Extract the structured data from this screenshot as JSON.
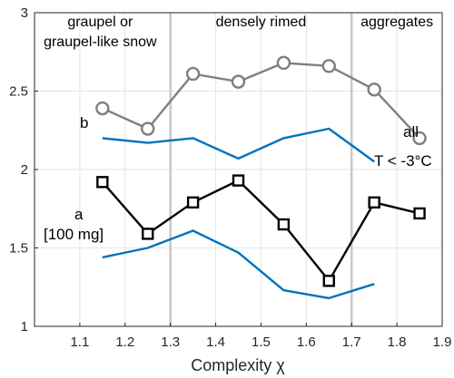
{
  "chart_data": {
    "type": "line",
    "xlabel": "Complexity χ",
    "ylabel": "",
    "xlim": [
      1.0,
      1.9
    ],
    "ylim": [
      1,
      3
    ],
    "xticks": [
      "1.1",
      "1.2",
      "1.3",
      "1.4",
      "1.5",
      "1.6",
      "1.7",
      "1.8",
      "1.9"
    ],
    "yticks": [
      "1",
      "1.5",
      "2",
      "2.5",
      "3"
    ],
    "grid": true,
    "dividers": [
      1.3,
      1.7
    ],
    "regions": [
      {
        "lines": [
          "graupel or",
          "graupel-like snow"
        ],
        "x_center": 1.145
      },
      {
        "lines": [
          "densely rimed"
        ],
        "x_center": 1.5
      },
      {
        "lines": [
          "aggregates"
        ],
        "x_center": 1.8
      }
    ],
    "series": [
      {
        "key": "b_all",
        "x": [
          1.15,
          1.25,
          1.35,
          1.45,
          1.55,
          1.65,
          1.75,
          1.85
        ],
        "values": [
          2.39,
          2.26,
          2.61,
          2.56,
          2.68,
          2.66,
          2.51,
          2.2
        ],
        "color": "#7f7f7f",
        "marker": "circle"
      },
      {
        "key": "b_cold",
        "x": [
          1.15,
          1.25,
          1.35,
          1.45,
          1.55,
          1.65,
          1.75
        ],
        "values": [
          2.2,
          2.17,
          2.2,
          2.07,
          2.2,
          2.26,
          2.05
        ],
        "color": "#0072bd",
        "marker": "none"
      },
      {
        "key": "a_all",
        "x": [
          1.15,
          1.25,
          1.35,
          1.45,
          1.55,
          1.65,
          1.75,
          1.85
        ],
        "values": [
          1.92,
          1.59,
          1.79,
          1.93,
          1.65,
          1.29,
          1.79,
          1.72
        ],
        "color": "#000000",
        "marker": "square"
      },
      {
        "key": "a_cold",
        "x": [
          1.15,
          1.25,
          1.35,
          1.45,
          1.55,
          1.65,
          1.75
        ],
        "values": [
          1.44,
          1.5,
          1.61,
          1.47,
          1.23,
          1.18,
          1.27
        ],
        "color": "#0072bd",
        "marker": "none"
      }
    ],
    "annotations": {
      "b": "b",
      "a": "a",
      "a_unit": "[100 mg]",
      "all": "all",
      "cold": "T < -3°C"
    }
  }
}
